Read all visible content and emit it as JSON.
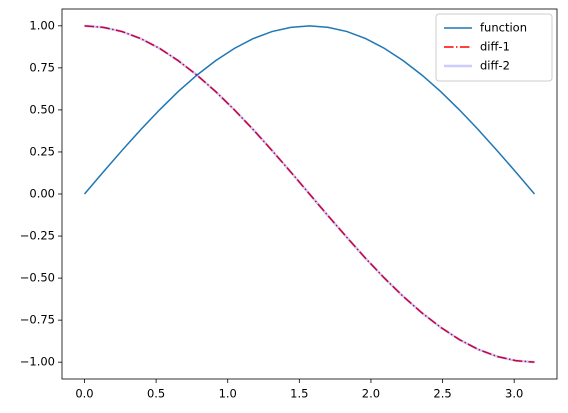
{
  "chart_data": {
    "type": "line",
    "x": [
      0,
      0.131,
      0.262,
      0.393,
      0.524,
      0.654,
      0.785,
      0.916,
      1.047,
      1.178,
      1.309,
      1.44,
      1.571,
      1.702,
      1.833,
      1.963,
      2.094,
      2.225,
      2.356,
      2.487,
      2.618,
      2.749,
      2.88,
      3.011,
      3.142
    ],
    "series": [
      {
        "name": "function",
        "color": "#1f77b4",
        "linestyle": "solid",
        "linewidth": 1.5,
        "alpha": 1,
        "values": [
          0,
          0.131,
          0.259,
          0.383,
          0.5,
          0.609,
          0.707,
          0.793,
          0.866,
          0.924,
          0.966,
          0.991,
          1,
          0.991,
          0.966,
          0.924,
          0.866,
          0.793,
          0.707,
          0.609,
          0.5,
          0.383,
          0.259,
          0.131,
          0
        ]
      },
      {
        "name": "diff-1",
        "color": "#ff0000",
        "linestyle": "dashdot",
        "linewidth": 1.5,
        "alpha": 1,
        "values": [
          1,
          0.991,
          0.966,
          0.924,
          0.866,
          0.793,
          0.707,
          0.609,
          0.5,
          0.383,
          0.259,
          0.131,
          0,
          -0.131,
          -0.259,
          -0.383,
          -0.5,
          -0.609,
          -0.707,
          -0.793,
          -0.866,
          -0.924,
          -0.966,
          -0.991,
          -1
        ]
      },
      {
        "name": "diff-2",
        "color": "#0000ff",
        "linestyle": "solid",
        "linewidth": 2.5,
        "alpha": 0.2,
        "values": [
          1,
          0.991,
          0.966,
          0.924,
          0.866,
          0.793,
          0.707,
          0.609,
          0.5,
          0.383,
          0.259,
          0.131,
          0,
          -0.131,
          -0.259,
          -0.383,
          -0.5,
          -0.609,
          -0.707,
          -0.793,
          -0.866,
          -0.924,
          -0.966,
          -0.991,
          -1
        ]
      }
    ],
    "xlim": [
      -0.157,
      3.299
    ],
    "ylim": [
      -1.1,
      1.1
    ],
    "xticks": [
      {
        "value": 0,
        "label": "0.0"
      },
      {
        "value": 0.5,
        "label": "0.5"
      },
      {
        "value": 1,
        "label": "1.0"
      },
      {
        "value": 1.5,
        "label": "1.5"
      },
      {
        "value": 2,
        "label": "2.0"
      },
      {
        "value": 2.5,
        "label": "2.5"
      },
      {
        "value": 3,
        "label": "3.0"
      }
    ],
    "yticks": [
      {
        "value": -1,
        "label": "−1.00"
      },
      {
        "value": -0.75,
        "label": "−0.75"
      },
      {
        "value": -0.5,
        "label": "−0.50"
      },
      {
        "value": -0.25,
        "label": "−0.25"
      },
      {
        "value": 0,
        "label": "0.00"
      },
      {
        "value": 0.25,
        "label": "0.25"
      },
      {
        "value": 0.5,
        "label": "0.50"
      },
      {
        "value": 0.75,
        "label": "0.75"
      },
      {
        "value": 1,
        "label": "1.00"
      }
    ],
    "grid": false,
    "legend": "upper right"
  }
}
